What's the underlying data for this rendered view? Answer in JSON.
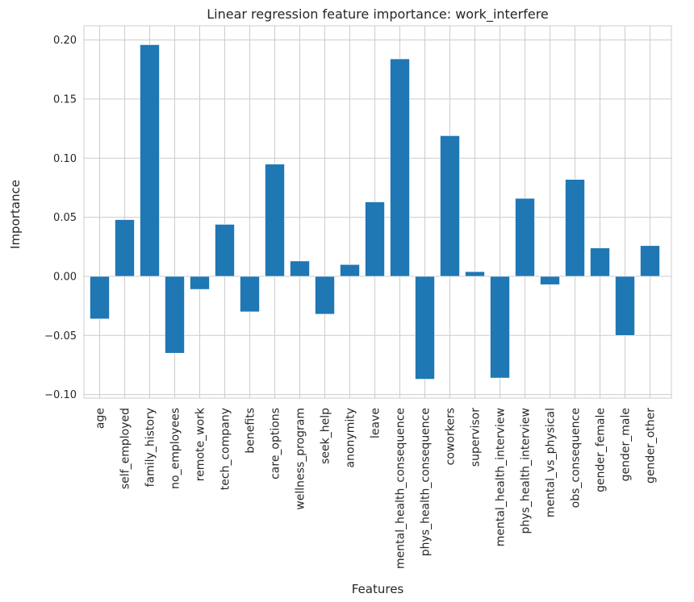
{
  "chart_data": {
    "type": "bar",
    "title": "Linear regression feature importance: work_interfere",
    "xlabel": "Features",
    "ylabel": "Importance",
    "ylim": [
      -0.103,
      0.212
    ],
    "yticks": [
      -0.1,
      -0.05,
      0.0,
      0.05,
      0.1,
      0.15,
      0.2
    ],
    "ytick_labels": [
      "−0.10",
      "−0.05",
      "0.00",
      "0.05",
      "0.10",
      "0.15",
      "0.20"
    ],
    "grid": true,
    "bar_color": "#1f77b4",
    "categories": [
      "age",
      "self_employed",
      "family_history",
      "no_employees",
      "remote_work",
      "tech_company",
      "benefits",
      "care_options",
      "wellness_program",
      "seek_help",
      "anonymity",
      "leave",
      "mental_health_consequence",
      "phys_health_consequence",
      "coworkers",
      "supervisor",
      "mental_health_interview",
      "phys_health_interview",
      "mental_vs_physical",
      "obs_consequence",
      "gender_female",
      "gender_male",
      "gender_other"
    ],
    "values": [
      -0.036,
      0.048,
      0.196,
      -0.065,
      -0.011,
      0.044,
      -0.03,
      0.095,
      0.013,
      -0.032,
      0.01,
      0.063,
      0.184,
      -0.087,
      0.119,
      0.004,
      -0.086,
      0.066,
      -0.007,
      0.082,
      0.024,
      -0.05,
      0.026
    ]
  }
}
